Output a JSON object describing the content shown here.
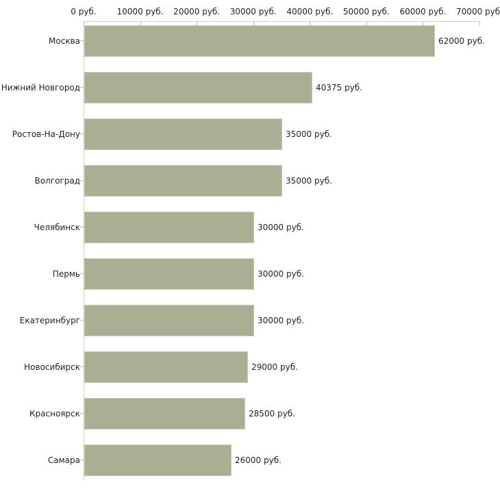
{
  "chart_data": {
    "type": "bar",
    "orientation": "horizontal",
    "title": "",
    "xlabel": "",
    "ylabel": "",
    "unit": "руб.",
    "categories": [
      "Москва",
      "Нижний Новгород",
      "Ростов-На-Дону",
      "Волгоград",
      "Челябинск",
      "Пермь",
      "Екатеринбург",
      "Новосибирск",
      "Красноярск",
      "Самара"
    ],
    "values": [
      62000,
      40375,
      35000,
      35000,
      30000,
      30000,
      30000,
      29000,
      28500,
      26000
    ],
    "value_labels": [
      "62000 руб.",
      "40375 руб.",
      "35000 руб.",
      "35000 руб.",
      "30000 руб.",
      "30000 руб.",
      "30000 руб.",
      "29000 руб.",
      "28500 руб.",
      "26000 руб."
    ],
    "x_axis": {
      "position": "top",
      "min": 0,
      "max": 70000,
      "ticks": [
        0,
        10000,
        20000,
        30000,
        40000,
        50000,
        60000,
        70000
      ],
      "tick_labels": [
        "0 руб.",
        "10000 руб.",
        "20000 руб.",
        "30000 руб.",
        "40000 руб.",
        "50000 руб.",
        "60000 руб.",
        "70000 руб."
      ]
    },
    "grid": false,
    "legend": false,
    "colors": {
      "bar_fill": "#aaae93",
      "bar_border": "#c6c9b7",
      "axis_line": "#ccccc2",
      "tick_mark": "#b8b8a8",
      "text": "#1f1f1f",
      "background": "#ffffff"
    }
  }
}
